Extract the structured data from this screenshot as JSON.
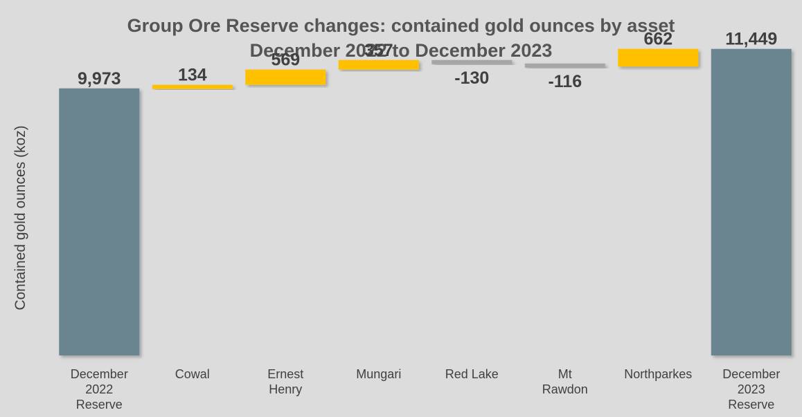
{
  "chart_data": {
    "type": "bar",
    "subtype": "waterfall",
    "title": "Group Ore Reserve changes: contained gold ounces by asset",
    "subtitle": "December 2022 to December 2023",
    "ylabel": "Contained gold ounces (koz)",
    "xlabel": "",
    "ylim": [
      0,
      12500
    ],
    "grid": false,
    "legend": "none",
    "categories": [
      [
        "December",
        "2022",
        "Reserve"
      ],
      [
        "Cowal"
      ],
      [
        "Ernest",
        "Henry"
      ],
      [
        "Mungari"
      ],
      [
        "Red Lake"
      ],
      [
        "Mt",
        "Rawdon"
      ],
      [
        "Northparkes"
      ],
      [
        "December",
        "2023",
        "Reserve"
      ]
    ],
    "values": [
      9973,
      134,
      569,
      357,
      -130,
      -116,
      662,
      11449
    ],
    "bar_kinds": [
      "total",
      "delta",
      "delta",
      "delta",
      "delta",
      "delta",
      "delta",
      "total"
    ],
    "data_labels": [
      "9,973",
      "134",
      "569",
      "357",
      "-130",
      "-116",
      "662",
      "11,449"
    ],
    "colors": {
      "total": "#6a8590",
      "increase": "#ffc000",
      "decrease": "#a6a6a6",
      "background": "#dcdcdc"
    }
  }
}
